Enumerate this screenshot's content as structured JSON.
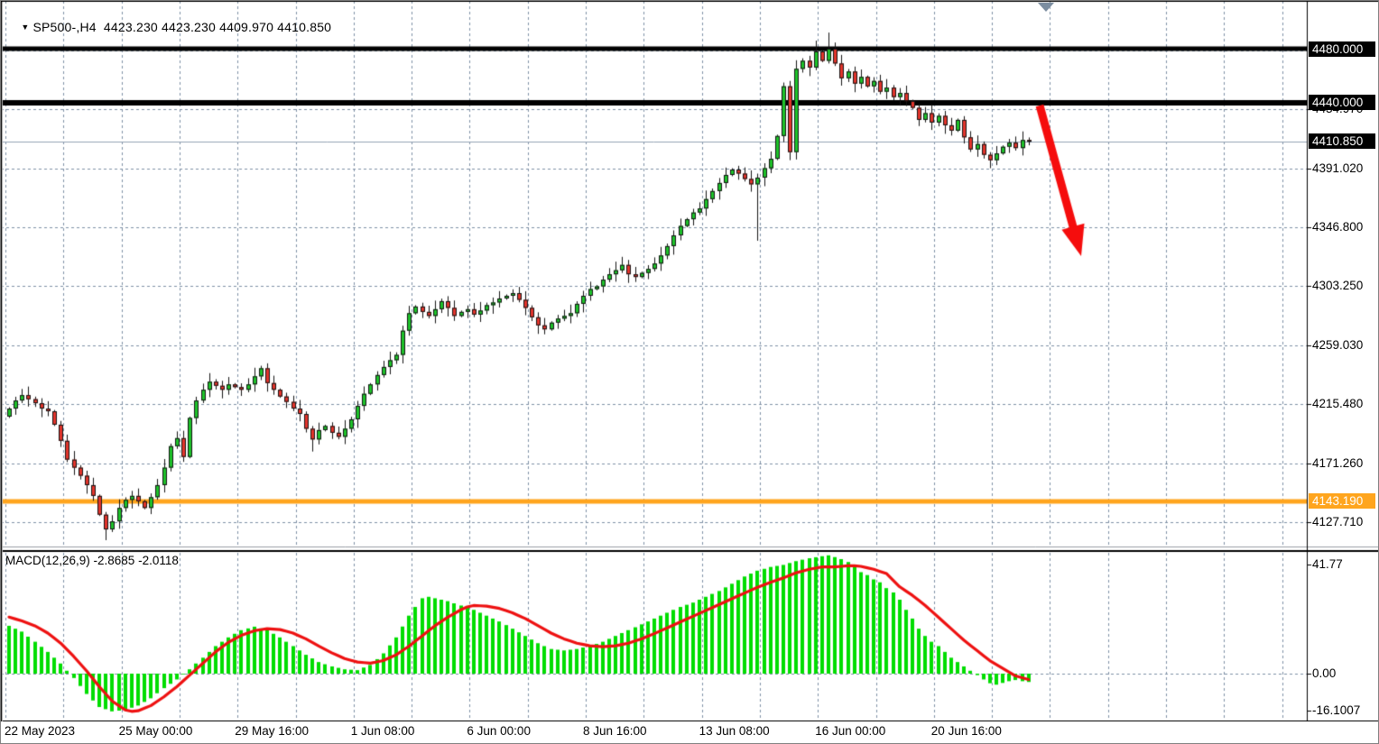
{
  "header": {
    "symbol_dropdown_icon": "▼",
    "title": "SP500-,H4  4423.230 4423.230 4409.970 4410.850"
  },
  "price_axis": {
    "labels": [
      {
        "text": "4434.970",
        "price": 4434.97
      },
      {
        "text": "4391.020",
        "price": 4391.02
      },
      {
        "text": "4346.800",
        "price": 4346.8
      },
      {
        "text": "4303.250",
        "price": 4303.25
      },
      {
        "text": "4259.030",
        "price": 4259.03
      },
      {
        "text": "4215.480",
        "price": 4215.48
      },
      {
        "text": "4171.260",
        "price": 4171.26
      },
      {
        "text": "4127.710",
        "price": 4127.71
      }
    ],
    "badges": [
      {
        "text": "4480.000",
        "price": 4480.0,
        "bg": "#000000",
        "fg": "#ffffff"
      },
      {
        "text": "4440.000",
        "price": 4440.0,
        "bg": "#000000",
        "fg": "#ffffff"
      },
      {
        "text": "4410.850",
        "price": 4410.85,
        "bg": "#000000",
        "fg": "#ffffff"
      },
      {
        "text": "4143.190",
        "price": 4143.19,
        "bg": "#ffa51e",
        "fg": "#ffffff"
      }
    ]
  },
  "macd_panel": {
    "label": "MACD(12,26,9) -2.8685 -2.0118",
    "axis_labels": [
      {
        "text": "41.77",
        "value": 41.77
      },
      {
        "text": "0.00",
        "value": 0.0
      },
      {
        "text": "-16.1007",
        "value": -16.1007
      }
    ]
  },
  "time_axis": {
    "labels": [
      "22 May 2023",
      "25 May 00:00",
      "29 May 16:00",
      "1 Jun 08:00",
      "6 Jun 00:00",
      "8 Jun 16:00",
      "13 Jun 08:00",
      "16 Jun 00:00",
      "20 Jun 16:00"
    ]
  },
  "chart_data": {
    "type": "candlestick",
    "symbol": "SP500-",
    "timeframe": "H4",
    "quote": {
      "open": 4423.23,
      "high": 4423.23,
      "low": 4409.97,
      "close": 4410.85
    },
    "first_open": 4206,
    "closes": [
      4212,
      4218,
      4222,
      4219,
      4216,
      4212,
      4210,
      4200,
      4188,
      4174,
      4168,
      4162,
      4155,
      4147,
      4133,
      4122,
      4128,
      4138,
      4144,
      4147,
      4143,
      4138,
      4146,
      4155,
      4168,
      4184,
      4190,
      4176,
      4205,
      4218,
      4226,
      4232,
      4229,
      4226,
      4230,
      4228,
      4226,
      4230,
      4236,
      4242,
      4231,
      4226,
      4221,
      4217,
      4212,
      4208,
      4197,
      4189,
      4196,
      4199,
      4194,
      4191,
      4197,
      4204,
      4214,
      4223,
      4230,
      4237,
      4243,
      4248,
      4252,
      4270,
      4283,
      4288,
      4284,
      4281,
      4286,
      4292,
      4287,
      4281,
      4284,
      4286,
      4282,
      4285,
      4289,
      4291,
      4294,
      4296,
      4298,
      4293,
      4287,
      4280,
      4274,
      4271,
      4276,
      4279,
      4281,
      4283,
      4290,
      4296,
      4301,
      4303,
      4308,
      4312,
      4315,
      4319,
      4312,
      4310,
      4313,
      4316,
      4320,
      4326,
      4333,
      4341,
      4348,
      4353,
      4358,
      4361,
      4368,
      4374,
      4380,
      4386,
      4390,
      4387,
      4383,
      4379,
      4384,
      4391,
      4398,
      4415,
      4452,
      4403,
      4465,
      4471,
      4466,
      4478,
      4471,
      4480,
      4469,
      4458,
      4463,
      4454,
      4459,
      4452,
      4456,
      4448,
      4451,
      4444,
      4447,
      4441,
      4436,
      4427,
      4432,
      4425,
      4430,
      4423,
      4419,
      4427,
      4414,
      4405,
      4409,
      4401,
      4397,
      4402,
      4407,
      4410,
      4406,
      4412,
      4410.85
    ],
    "wick_overrides": {
      "15": [
        2,
        8
      ],
      "26": [
        5,
        2
      ],
      "47": [
        2,
        9
      ],
      "95": [
        6,
        2
      ],
      "116": [
        3,
        42
      ],
      "121": [
        4,
        6
      ],
      "125": [
        8,
        2
      ],
      "127": [
        12,
        2
      ],
      "152": [
        2,
        6
      ]
    },
    "gridline_prices": [
      4478.92,
      4434.97,
      4391.02,
      4346.8,
      4303.25,
      4259.03,
      4215.48,
      4171.26,
      4127.71
    ],
    "levels": [
      {
        "price": 4480.0,
        "color": "#000000",
        "width": 5
      },
      {
        "price": 4440.0,
        "color": "#000000",
        "width": 6
      },
      {
        "price": 4143.19,
        "color": "#ffa51e",
        "width": 5
      }
    ],
    "current_price": 4410.85,
    "macd": {
      "current": -2.8685,
      "signal_current": -2.0118,
      "max": 41.77,
      "min": -16.1007,
      "hist_anchors": [
        [
          0,
          16.5
        ],
        [
          2,
          14.5
        ],
        [
          4,
          11
        ],
        [
          6,
          7.5
        ],
        [
          8,
          3.5
        ],
        [
          9,
          1
        ],
        [
          10,
          -1.5
        ],
        [
          12,
          -7
        ],
        [
          14,
          -11.5
        ],
        [
          16,
          -13
        ],
        [
          18,
          -12.5
        ],
        [
          20,
          -11
        ],
        [
          22,
          -8.5
        ],
        [
          24,
          -5
        ],
        [
          26,
          -2
        ],
        [
          28,
          1.5
        ],
        [
          30,
          5.5
        ],
        [
          32,
          9.5
        ],
        [
          34,
          12.5
        ],
        [
          36,
          15
        ],
        [
          38,
          16.2
        ],
        [
          40,
          15
        ],
        [
          42,
          12.5
        ],
        [
          44,
          9.5
        ],
        [
          46,
          6.5
        ],
        [
          48,
          4
        ],
        [
          50,
          2.5
        ],
        [
          52,
          1.5
        ],
        [
          54,
          1.2
        ],
        [
          56,
          3
        ],
        [
          58,
          7
        ],
        [
          60,
          12.5
        ],
        [
          62,
          20
        ],
        [
          64,
          26
        ],
        [
          65,
          26.5
        ],
        [
          66,
          26
        ],
        [
          68,
          25
        ],
        [
          70,
          23.5
        ],
        [
          72,
          22
        ],
        [
          74,
          20
        ],
        [
          76,
          18
        ],
        [
          78,
          15.5
        ],
        [
          80,
          13
        ],
        [
          82,
          10.5
        ],
        [
          84,
          8.5
        ],
        [
          86,
          8
        ],
        [
          88,
          8.5
        ],
        [
          90,
          9.5
        ],
        [
          92,
          11
        ],
        [
          94,
          13
        ],
        [
          96,
          15
        ],
        [
          98,
          17
        ],
        [
          100,
          19
        ],
        [
          102,
          21
        ],
        [
          104,
          23
        ],
        [
          106,
          24.5
        ],
        [
          108,
          26.5
        ],
        [
          110,
          28.5
        ],
        [
          112,
          31
        ],
        [
          114,
          33.5
        ],
        [
          116,
          35.5
        ],
        [
          118,
          36.8
        ],
        [
          120,
          37.5
        ],
        [
          122,
          38.8
        ],
        [
          124,
          39.8
        ],
        [
          126,
          40.5
        ],
        [
          127,
          40.8
        ],
        [
          128,
          40.2
        ],
        [
          129,
          39.5
        ],
        [
          130,
          38.5
        ],
        [
          131,
          37.5
        ],
        [
          132,
          35
        ],
        [
          133,
          34
        ],
        [
          134,
          32.5
        ],
        [
          135,
          31.5
        ],
        [
          136,
          29.5
        ],
        [
          137,
          28
        ],
        [
          138,
          25.5
        ],
        [
          139,
          22
        ],
        [
          140,
          19
        ],
        [
          141,
          15.5
        ],
        [
          142,
          13
        ],
        [
          143,
          11
        ],
        [
          144,
          9.5
        ],
        [
          145,
          7.5
        ],
        [
          146,
          5.5
        ],
        [
          147,
          4
        ],
        [
          148,
          2.5
        ],
        [
          149,
          1
        ],
        [
          150,
          -0.5
        ],
        [
          151,
          -2
        ],
        [
          152,
          -3.3
        ],
        [
          153,
          -3.8
        ],
        [
          154,
          -3.2
        ],
        [
          155,
          -2.6
        ],
        [
          156,
          -2.2
        ],
        [
          157,
          -2.6
        ],
        [
          158,
          -2.87
        ]
      ],
      "signal_anchors": [
        [
          0,
          19.5
        ],
        [
          2,
          18.2
        ],
        [
          4,
          16.5
        ],
        [
          6,
          14
        ],
        [
          8,
          10.5
        ],
        [
          10,
          6
        ],
        [
          12,
          1
        ],
        [
          14,
          -4.5
        ],
        [
          16,
          -9.5
        ],
        [
          18,
          -12.5
        ],
        [
          19,
          -13
        ],
        [
          20,
          -12.8
        ],
        [
          22,
          -11
        ],
        [
          24,
          -8
        ],
        [
          26,
          -4.5
        ],
        [
          28,
          -0.5
        ],
        [
          30,
          3.5
        ],
        [
          32,
          7.5
        ],
        [
          34,
          10.8
        ],
        [
          36,
          13.2
        ],
        [
          38,
          14.8
        ],
        [
          40,
          15.5
        ],
        [
          42,
          15.2
        ],
        [
          44,
          14
        ],
        [
          46,
          12
        ],
        [
          48,
          9.5
        ],
        [
          50,
          7.2
        ],
        [
          52,
          5.2
        ],
        [
          54,
          4
        ],
        [
          56,
          3.6
        ],
        [
          58,
          4.5
        ],
        [
          60,
          6.5
        ],
        [
          62,
          9.5
        ],
        [
          64,
          13
        ],
        [
          66,
          16.5
        ],
        [
          68,
          19.5
        ],
        [
          70,
          22
        ],
        [
          71,
          23
        ],
        [
          72,
          23.5
        ],
        [
          74,
          23.3
        ],
        [
          76,
          22.5
        ],
        [
          78,
          21
        ],
        [
          80,
          19
        ],
        [
          82,
          16.5
        ],
        [
          84,
          14
        ],
        [
          86,
          12
        ],
        [
          88,
          10.5
        ],
        [
          90,
          9.6
        ],
        [
          92,
          9.3
        ],
        [
          94,
          9.6
        ],
        [
          96,
          10.5
        ],
        [
          98,
          12
        ],
        [
          100,
          13.8
        ],
        [
          102,
          15.8
        ],
        [
          104,
          17.8
        ],
        [
          106,
          19.8
        ],
        [
          108,
          21.8
        ],
        [
          110,
          23.8
        ],
        [
          112,
          25.8
        ],
        [
          114,
          27.8
        ],
        [
          116,
          29.8
        ],
        [
          118,
          31.5
        ],
        [
          120,
          33
        ],
        [
          122,
          34.8
        ],
        [
          124,
          36
        ],
        [
          126,
          36.8
        ],
        [
          128,
          36.8
        ],
        [
          130,
          37.2
        ],
        [
          131,
          37.2
        ],
        [
          132,
          37
        ],
        [
          134,
          36
        ],
        [
          136,
          34.5
        ],
        [
          138,
          30
        ],
        [
          140,
          27
        ],
        [
          142,
          23.5
        ],
        [
          144,
          19.5
        ],
        [
          146,
          15.5
        ],
        [
          148,
          11.5
        ],
        [
          150,
          8
        ],
        [
          152,
          4.5
        ],
        [
          154,
          1.8
        ],
        [
          156,
          -0.8
        ],
        [
          158,
          -2.01
        ]
      ]
    },
    "arrow": {
      "from": [
        1151,
        116
      ],
      "to": [
        1197,
        283
      ]
    },
    "ylim": [
      4110,
      4515
    ],
    "colors": {
      "up": "#1ec32a",
      "down": "#e3352c",
      "outline": "#141414",
      "hist": "#00dd00",
      "signal": "#ee1111",
      "arrow": "#f50d0d",
      "grid": "#7e90a5",
      "price_line": "#94a3b5",
      "bg": "#ffffff",
      "marker": "#7b8da0"
    }
  }
}
